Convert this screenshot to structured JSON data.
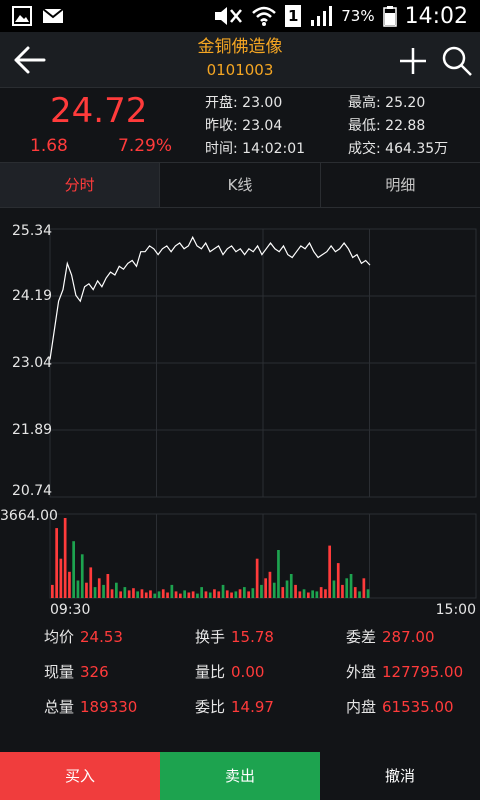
{
  "status": {
    "battery_pct": "73%",
    "time": "14:02",
    "sim": "1"
  },
  "header": {
    "title": "金铜佛造像",
    "code": "0101003"
  },
  "quote": {
    "price": "24.72",
    "change": "1.68",
    "change_pct": "7.29%",
    "open_label": "开盘:",
    "open": "23.00",
    "high_label": "最高:",
    "high": "25.20",
    "prev_label": "昨收:",
    "prev": "23.04",
    "low_label": "最低:",
    "low": "22.88",
    "time_label": "时间:",
    "time": "14:02:01",
    "amount_label": "成交:",
    "amount": "464.35万"
  },
  "tabs": [
    {
      "label": "分时"
    },
    {
      "label": "K线"
    },
    {
      "label": "明细"
    }
  ],
  "colors": {
    "up": "#ff3b3b",
    "down": "#1da34f",
    "accent": "#f5a623"
  },
  "chart_data": {
    "type": "line",
    "y_ticks": [
      "25.34",
      "24.19",
      "23.04",
      "21.89",
      "20.74"
    ],
    "ylim": [
      20.74,
      25.34
    ],
    "x_ticks": [
      "09:30",
      "15:00"
    ],
    "volume_max_label": "3664.00",
    "volume_max": 3664,
    "series": [
      {
        "values": [
          23.1,
          23.6,
          24.1,
          24.3,
          24.75,
          24.55,
          24.2,
          24.1,
          24.35,
          24.4,
          24.3,
          24.45,
          24.35,
          24.5,
          24.6,
          24.55,
          24.7,
          24.65,
          24.75,
          24.8,
          24.7,
          24.95,
          24.95,
          25.05,
          25.0,
          24.9,
          25.0,
          25.05,
          24.95,
          25.05,
          25.1,
          25.0,
          25.05,
          25.2,
          25.05,
          25.0,
          25.1,
          24.95,
          25.0,
          25.05,
          24.9,
          25.0,
          25.05,
          24.95,
          25.0,
          24.9,
          25.0,
          24.95,
          25.05,
          24.9,
          25.0,
          25.1,
          25.0,
          24.95,
          25.05,
          24.9,
          24.85,
          24.95,
          25.05,
          25.0,
          25.1,
          24.95,
          24.85,
          24.9,
          24.95,
          25.05,
          24.95,
          25.0,
          25.1,
          25.0,
          24.85,
          24.9,
          24.75,
          24.8,
          24.72
        ]
      }
    ],
    "volume": [
      600,
      3200,
      1800,
      3664,
      1200,
      2600,
      800,
      2000,
      700,
      1400,
      500,
      900,
      600,
      1100,
      400,
      700,
      300,
      500,
      350,
      450,
      300,
      400,
      250,
      350,
      200,
      300,
      400,
      250,
      600,
      300,
      200,
      350,
      250,
      300,
      200,
      500,
      300,
      250,
      400,
      300,
      600,
      350,
      250,
      300,
      400,
      500,
      300,
      450,
      1800,
      600,
      900,
      1200,
      700,
      2200,
      500,
      800,
      1100,
      600,
      300,
      400,
      250,
      350,
      300,
      500,
      400,
      2400,
      800,
      1600,
      600,
      900,
      1100,
      500,
      300,
      900,
      400
    ]
  },
  "stats": {
    "avg_label": "均价",
    "avg": "24.53",
    "turnover_label": "换手",
    "turnover": "15.78",
    "diff_label": "委差",
    "diff": "287.00",
    "cur_vol_label": "现量",
    "cur_vol": "326",
    "vol_ratio_label": "量比",
    "vol_ratio": "0.00",
    "outer_label": "外盘",
    "outer": "127795.00",
    "total_label": "总量",
    "total": "189330",
    "order_ratio_label": "委比",
    "order_ratio": "14.97",
    "inner_label": "内盘",
    "inner": "61535.00"
  },
  "actions": {
    "buy": "买入",
    "sell": "卖出",
    "cancel": "撤消"
  }
}
